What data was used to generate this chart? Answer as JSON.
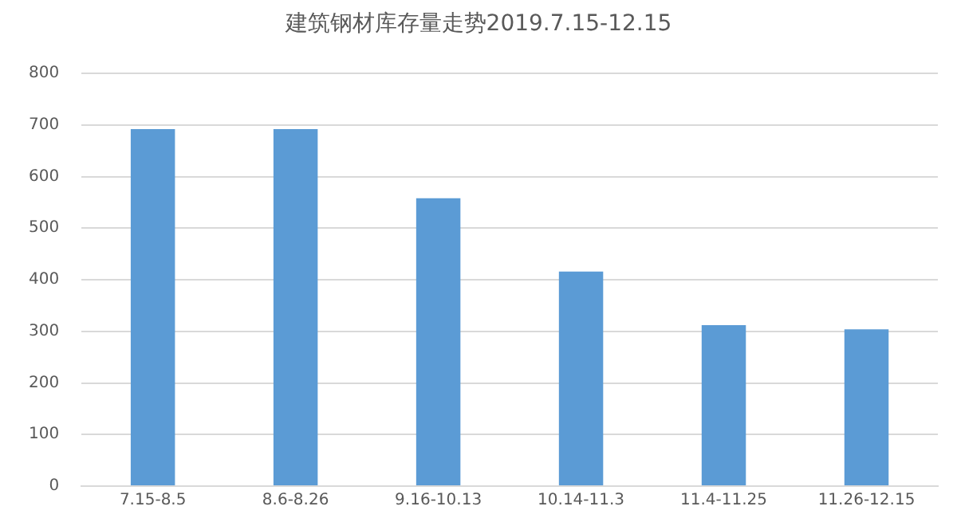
{
  "chart_data": {
    "type": "bar",
    "title": "建筑钢材库存量走势2019.7.15-12.15",
    "categories": [
      "7.15-8.5",
      "8.6-8.26",
      "9.16-10.13",
      "10.14-11.3",
      "11.4-11.25",
      "11.26-12.15"
    ],
    "values": [
      692,
      692,
      558,
      416,
      312,
      304
    ],
    "color": "#5b9bd5",
    "ylim": [
      0,
      800
    ],
    "yticks": [
      0,
      100,
      200,
      300,
      400,
      500,
      600,
      700,
      800
    ],
    "grid": "y"
  }
}
